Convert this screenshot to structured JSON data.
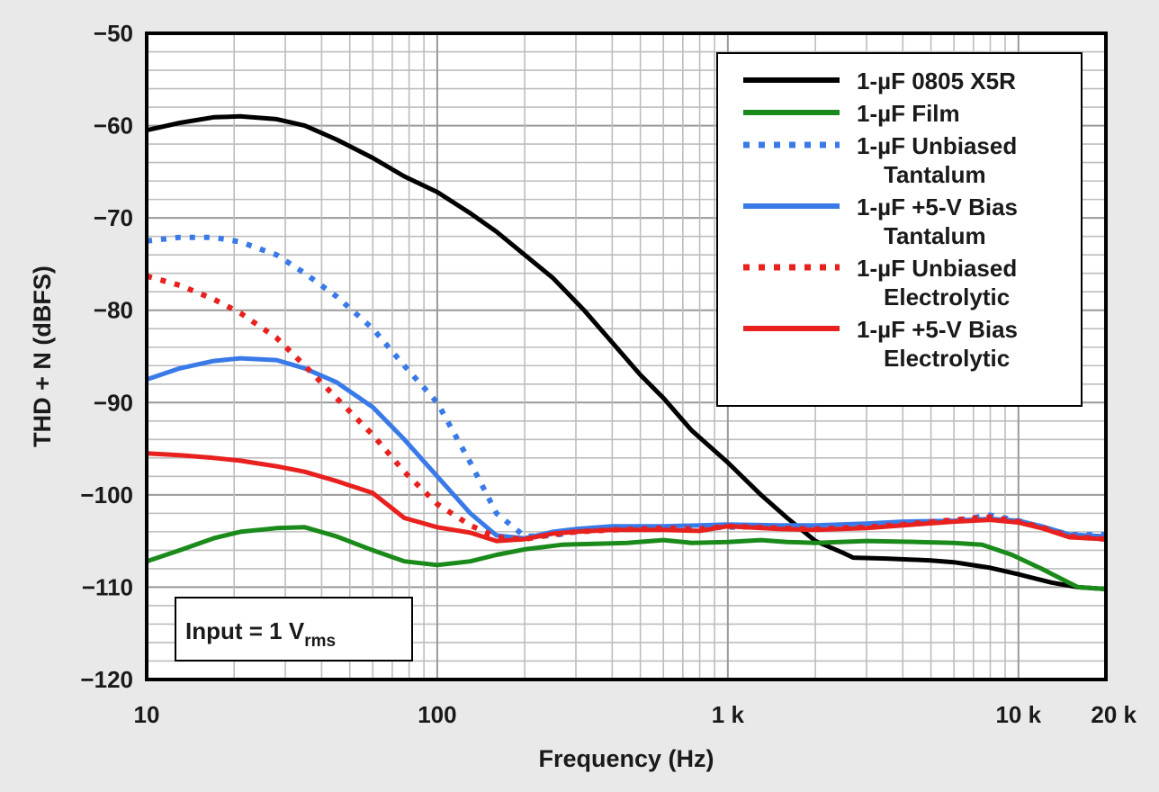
{
  "chart_data": {
    "type": "line",
    "xlabel": "Frequency (Hz)",
    "ylabel": "THD + N (dBFS)",
    "x_scale": "log",
    "xlim": [
      10,
      20000
    ],
    "ylim": [
      -120,
      -50
    ],
    "grid": true,
    "legend_position": "top-right",
    "x_ticks": [
      {
        "value": 10,
        "label": "10"
      },
      {
        "value": 100,
        "label": "100"
      },
      {
        "value": 1000,
        "label": "1 k"
      },
      {
        "value": 10000,
        "label": "10 k"
      },
      {
        "value": 20000,
        "label": "20 k"
      }
    ],
    "y_ticks": [
      {
        "value": -50,
        "label": "−50"
      },
      {
        "value": -60,
        "label": "−60"
      },
      {
        "value": -70,
        "label": "−70"
      },
      {
        "value": -80,
        "label": "−80"
      },
      {
        "value": -90,
        "label": "−90"
      },
      {
        "value": -100,
        "label": "−100"
      },
      {
        "value": -110,
        "label": "−110"
      },
      {
        "value": -120,
        "label": "−120"
      }
    ],
    "annotation": {
      "main": "Input = 1 V",
      "sub": "rms"
    },
    "series": [
      {
        "name": "1-µF 0805 X5R",
        "legend_lines": [
          "1-µF 0805 X5R"
        ],
        "color": "#000000",
        "style": "solid",
        "points": [
          [
            10,
            -60.5
          ],
          [
            13,
            -59.7
          ],
          [
            17,
            -59.1
          ],
          [
            21,
            -59
          ],
          [
            28,
            -59.3
          ],
          [
            35,
            -60
          ],
          [
            45,
            -61.5
          ],
          [
            60,
            -63.5
          ],
          [
            77,
            -65.5
          ],
          [
            100,
            -67.2
          ],
          [
            130,
            -69.5
          ],
          [
            160,
            -71.5
          ],
          [
            200,
            -74
          ],
          [
            250,
            -76.5
          ],
          [
            320,
            -80
          ],
          [
            400,
            -83.5
          ],
          [
            500,
            -87
          ],
          [
            600,
            -89.5
          ],
          [
            750,
            -93
          ],
          [
            1000,
            -96.5
          ],
          [
            1300,
            -100
          ],
          [
            1600,
            -102.5
          ],
          [
            2000,
            -105
          ],
          [
            2500,
            -106.3
          ],
          [
            2700,
            -106.8
          ],
          [
            3500,
            -106.9
          ],
          [
            5000,
            -107.1
          ],
          [
            6000,
            -107.3
          ],
          [
            8000,
            -107.9
          ],
          [
            10000,
            -108.6
          ],
          [
            13000,
            -109.5
          ],
          [
            16000,
            -110
          ],
          [
            20000,
            -110.2
          ]
        ]
      },
      {
        "name": "1-µF Film",
        "legend_lines": [
          "1-µF Film"
        ],
        "color": "#1a8a1a",
        "style": "solid",
        "points": [
          [
            10,
            -107.2
          ],
          [
            13,
            -106
          ],
          [
            17,
            -104.7
          ],
          [
            21,
            -104
          ],
          [
            28,
            -103.6
          ],
          [
            35,
            -103.5
          ],
          [
            45,
            -104.5
          ],
          [
            60,
            -106
          ],
          [
            77,
            -107.2
          ],
          [
            100,
            -107.6
          ],
          [
            130,
            -107.2
          ],
          [
            160,
            -106.5
          ],
          [
            200,
            -105.9
          ],
          [
            270,
            -105.4
          ],
          [
            350,
            -105.3
          ],
          [
            450,
            -105.2
          ],
          [
            600,
            -104.9
          ],
          [
            750,
            -105.2
          ],
          [
            1000,
            -105.1
          ],
          [
            1300,
            -104.9
          ],
          [
            1600,
            -105.1
          ],
          [
            2000,
            -105.2
          ],
          [
            3000,
            -105
          ],
          [
            4500,
            -105.1
          ],
          [
            6000,
            -105.2
          ],
          [
            7500,
            -105.4
          ],
          [
            9500,
            -106.5
          ],
          [
            12000,
            -108
          ],
          [
            16000,
            -110
          ],
          [
            20000,
            -110.2
          ]
        ]
      },
      {
        "name": "1-µF Unbiased Tantalum",
        "legend_lines": [
          "1-µF Unbiased",
          "Tantalum"
        ],
        "color": "#3a7ae8",
        "style": "dotted",
        "points": [
          [
            10,
            -72.5
          ],
          [
            13,
            -72.1
          ],
          [
            17,
            -72.1
          ],
          [
            21,
            -72.6
          ],
          [
            28,
            -74
          ],
          [
            35,
            -76
          ],
          [
            45,
            -78.5
          ],
          [
            60,
            -82
          ],
          [
            77,
            -86
          ],
          [
            100,
            -90
          ],
          [
            130,
            -96.5
          ],
          [
            160,
            -102
          ],
          [
            200,
            -104.5
          ],
          [
            250,
            -104.4
          ],
          [
            300,
            -104
          ],
          [
            400,
            -103.7
          ],
          [
            600,
            -103.5
          ],
          [
            800,
            -103.6
          ],
          [
            1000,
            -103.5
          ],
          [
            1500,
            -103.4
          ],
          [
            2000,
            -103.4
          ],
          [
            3000,
            -103.2
          ],
          [
            4000,
            -103
          ],
          [
            6000,
            -102.8
          ],
          [
            8000,
            -102.2
          ],
          [
            10000,
            -102.8
          ],
          [
            12000,
            -103.5
          ],
          [
            15000,
            -104.3
          ],
          [
            20000,
            -104.3
          ]
        ]
      },
      {
        "name": "1-µF +5-V Bias Tantalum",
        "legend_lines": [
          "1-µF +5-V Bias",
          "Tantalum"
        ],
        "color": "#3a7ae8",
        "style": "solid",
        "points": [
          [
            10,
            -87.5
          ],
          [
            13,
            -86.3
          ],
          [
            17,
            -85.5
          ],
          [
            21,
            -85.2
          ],
          [
            28,
            -85.4
          ],
          [
            35,
            -86.3
          ],
          [
            45,
            -87.8
          ],
          [
            60,
            -90.5
          ],
          [
            77,
            -94
          ],
          [
            100,
            -98
          ],
          [
            130,
            -102
          ],
          [
            160,
            -104.4
          ],
          [
            200,
            -104.7
          ],
          [
            250,
            -104
          ],
          [
            300,
            -103.7
          ],
          [
            400,
            -103.4
          ],
          [
            600,
            -103.4
          ],
          [
            800,
            -103.3
          ],
          [
            1000,
            -103.2
          ],
          [
            1500,
            -103.3
          ],
          [
            2000,
            -103.3
          ],
          [
            3000,
            -103.1
          ],
          [
            4000,
            -102.9
          ],
          [
            6000,
            -102.8
          ],
          [
            8000,
            -102.6
          ],
          [
            10000,
            -102.8
          ],
          [
            12000,
            -103.4
          ],
          [
            15000,
            -104.3
          ],
          [
            20000,
            -104.5
          ]
        ]
      },
      {
        "name": "1-µF Unbiased Electrolytic",
        "legend_lines": [
          "1-µF Unbiased",
          "Electrolytic"
        ],
        "color": "#e8201e",
        "style": "dotted",
        "points": [
          [
            10,
            -76.3
          ],
          [
            13,
            -77.3
          ],
          [
            17,
            -78.8
          ],
          [
            21,
            -80.3
          ],
          [
            28,
            -83
          ],
          [
            35,
            -86
          ],
          [
            45,
            -89.5
          ],
          [
            60,
            -93.5
          ],
          [
            77,
            -97.5
          ],
          [
            100,
            -101
          ],
          [
            130,
            -103.3
          ],
          [
            160,
            -104.6
          ],
          [
            200,
            -104.8
          ],
          [
            250,
            -104.3
          ],
          [
            300,
            -104
          ],
          [
            400,
            -103.8
          ],
          [
            600,
            -103.6
          ],
          [
            800,
            -103.7
          ],
          [
            1000,
            -103.4
          ],
          [
            1500,
            -103.6
          ],
          [
            2000,
            -103.7
          ],
          [
            3000,
            -103.5
          ],
          [
            4000,
            -103.2
          ],
          [
            6000,
            -102.7
          ],
          [
            8000,
            -102.4
          ],
          [
            10000,
            -102.9
          ],
          [
            12000,
            -103.5
          ],
          [
            15000,
            -104.5
          ],
          [
            20000,
            -104.8
          ]
        ]
      },
      {
        "name": "1-µF +5-V Bias Electrolytic",
        "legend_lines": [
          "1-µF +5-V Bias",
          "Electrolytic"
        ],
        "color": "#e8201e",
        "style": "solid",
        "points": [
          [
            10,
            -95.5
          ],
          [
            13,
            -95.7
          ],
          [
            17,
            -96
          ],
          [
            21,
            -96.3
          ],
          [
            28,
            -96.9
          ],
          [
            35,
            -97.5
          ],
          [
            45,
            -98.5
          ],
          [
            60,
            -99.8
          ],
          [
            77,
            -102.5
          ],
          [
            100,
            -103.5
          ],
          [
            130,
            -104.1
          ],
          [
            160,
            -105
          ],
          [
            200,
            -104.8
          ],
          [
            250,
            -104.2
          ],
          [
            300,
            -104
          ],
          [
            400,
            -103.8
          ],
          [
            600,
            -103.8
          ],
          [
            800,
            -103.9
          ],
          [
            1000,
            -103.4
          ],
          [
            1500,
            -103.7
          ],
          [
            2000,
            -103.8
          ],
          [
            3000,
            -103.6
          ],
          [
            4000,
            -103.3
          ],
          [
            6000,
            -102.9
          ],
          [
            8000,
            -102.7
          ],
          [
            10000,
            -103
          ],
          [
            12000,
            -103.6
          ],
          [
            15000,
            -104.6
          ],
          [
            20000,
            -104.8
          ]
        ]
      }
    ]
  }
}
